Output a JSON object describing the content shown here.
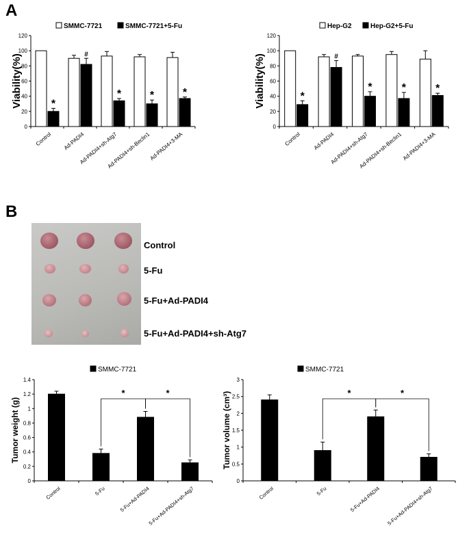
{
  "panels": {
    "a": "A",
    "b": "B"
  },
  "photo": {
    "labels": [
      "Control",
      "5-Fu",
      "5-Fu+Ad-PADI4",
      "5-Fu+Ad-PADI4+sh-Atg7"
    ]
  },
  "colors": {
    "bar_dark": "#000000",
    "bar_light": "#ffffff",
    "tumor": "#b8838a"
  },
  "chart_data": [
    {
      "id": "a-left",
      "type": "bar",
      "ylabel": "Viability(%)",
      "ylim": [
        0,
        120
      ],
      "yticks": [
        0,
        20,
        40,
        60,
        80,
        100,
        120
      ],
      "grid": false,
      "legend_placement": "top",
      "categories": [
        "Control",
        "Ad-PADI4",
        "Ad-PADI4+sh-Atg7",
        "Ad-PADI4+sh-Beclin1",
        "Ad-PADI4+3-MA"
      ],
      "series": [
        {
          "name": "SMMC-7721",
          "style": "open",
          "values": [
            100,
            90,
            93,
            92,
            91
          ],
          "errors": [
            0,
            4,
            6,
            3,
            7
          ]
        },
        {
          "name": "SMMC-7721+5-Fu",
          "style": "filled",
          "values": [
            20,
            82,
            34,
            30,
            37
          ],
          "errors": [
            4,
            8,
            3,
            5,
            2
          ]
        }
      ],
      "annotations": [
        "*",
        "#",
        "*",
        "*",
        "*"
      ]
    },
    {
      "id": "a-right",
      "type": "bar",
      "ylabel": "Viability(%)",
      "ylim": [
        0,
        120
      ],
      "yticks": [
        0,
        20,
        40,
        60,
        80,
        100,
        120
      ],
      "grid": false,
      "legend_placement": "top",
      "categories": [
        "Control",
        "Ad-PADI4",
        "Ad-PADI4+sh-Atg7",
        "Ad-PADI4+sh-Beclin1",
        "Ad-PADI4+3-MA"
      ],
      "series": [
        {
          "name": "Hep-G2",
          "style": "open",
          "values": [
            100,
            92,
            93,
            95,
            89
          ],
          "errors": [
            0,
            3,
            2,
            4,
            11
          ]
        },
        {
          "name": "Hep-G2+5-Fu",
          "style": "filled",
          "values": [
            29,
            78,
            40,
            37,
            41
          ],
          "errors": [
            5,
            9,
            6,
            8,
            3
          ]
        }
      ],
      "annotations": [
        "*",
        "#",
        "*",
        "*",
        "*"
      ]
    },
    {
      "id": "b-left",
      "type": "bar",
      "ylabel": "Tumor weight (g)",
      "ylim": [
        0,
        1.4
      ],
      "yticks": [
        0,
        0.2,
        0.4,
        0.6,
        0.8,
        1,
        1.2,
        1.4
      ],
      "grid": false,
      "legend_placement": "top",
      "categories": [
        "Control",
        "5-Fu",
        "5-Fu+Ad-PADI4",
        "5-Fu+Ad-PADI4+sh-Atg7"
      ],
      "series": [
        {
          "name": "SMMC-7721",
          "style": "filled",
          "values": [
            1.2,
            0.38,
            0.88,
            0.25
          ],
          "errors": [
            0.04,
            0.06,
            0.08,
            0.04
          ]
        }
      ],
      "brackets": [
        {
          "from": 1,
          "to": 2,
          "label": "*"
        },
        {
          "from": 2,
          "to": 3,
          "label": "*"
        }
      ]
    },
    {
      "id": "b-right",
      "type": "bar",
      "ylabel": "Tumor volume (cm³)",
      "ylim": [
        0,
        3
      ],
      "yticks": [
        0,
        0.5,
        1,
        1.5,
        2,
        2.5,
        3
      ],
      "grid": false,
      "legend_placement": "top",
      "categories": [
        "Control",
        "5-Fu",
        "5-Fu+Ad-PADI4",
        "5-Fu+Ad-PADI4+sh-Atg7"
      ],
      "series": [
        {
          "name": "SMMC-7721",
          "style": "filled",
          "values": [
            2.4,
            0.9,
            1.9,
            0.7
          ],
          "errors": [
            0.15,
            0.25,
            0.2,
            0.1
          ]
        }
      ],
      "brackets": [
        {
          "from": 1,
          "to": 2,
          "label": "*"
        },
        {
          "from": 2,
          "to": 3,
          "label": "*"
        }
      ]
    }
  ]
}
